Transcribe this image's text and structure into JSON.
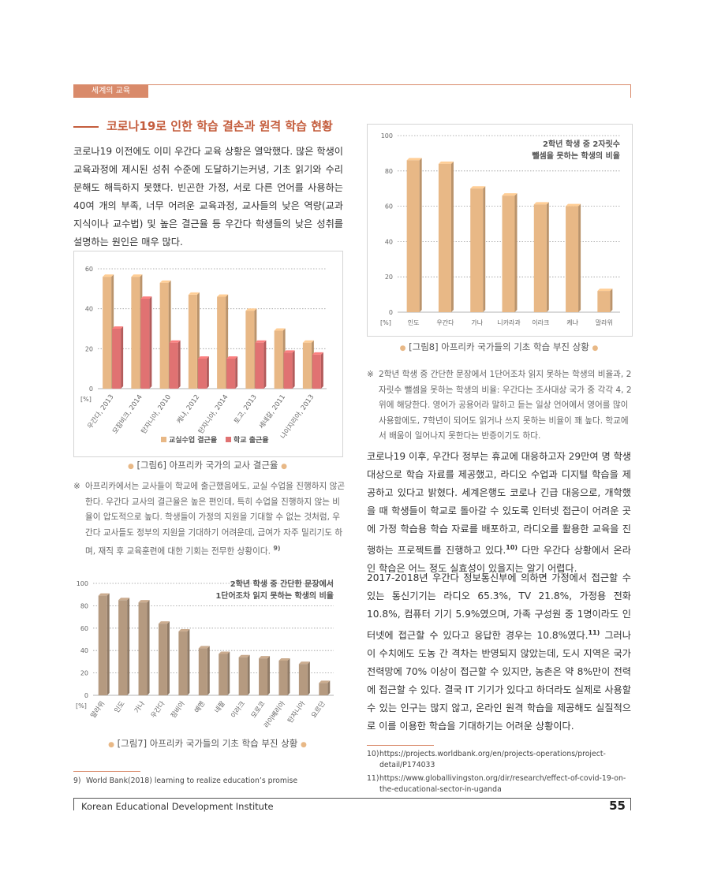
{
  "header": {
    "section_tab": "세계의 교육"
  },
  "section_title": "코로나19로 인한 학습 결손과 원격 학습 현황",
  "intro_paragraph": "코로나19 이전에도 이미 우간다 교육 상황은 열악했다. 많은 학생이 교육과정에 제시된 성취 수준에 도달하기는커녕, 기초 읽기와 수리 문해도 해득하지 못했다. 빈곤한 가정, 서로 다른 언어를 사용하는 40여 개의 부족, 너무 어려운 교육과정, 교사들의 낮은 역량(교과 지식이나 교수법) 및 높은 결근율 등 우간다 학생들의 낮은 성취를 설명하는 원인은 매우 많다.",
  "fig6": {
    "caption": "[그림6] 아프리카 국가의 교사 결근율",
    "note_mark": "※",
    "note_text": "아프리카에서는 교사들이 학교에 출근했음에도, 교실 수업을 진행하지 않곤 한다. 우간다 교사의 결근율은 높은 편인데, 특히 수업을 진행하지 않는 비율이 압도적으로 높다. 학생들이 가정의 지원을 기대할 수 없는 것처럼, 우간다 교사들도 정부의 지원을 기대하기 어려운데, 급여가 자주 밀리기도 하며, 재직 후 교육훈련에 대한 기회는 전무한 상황이다.",
    "note_ref": "9)"
  },
  "fig7": {
    "caption": "[그림7] 아프리카 국가들의 기초 학습 부진 상황"
  },
  "fig8": {
    "caption": "[그림8] 아프리카 국가들의 기초 학습 부진 상황",
    "note_mark": "※",
    "note_text": "2학년 학생 중 간단한 문장에서 1단어조차 읽지 못하는 학생의 비율과, 2자릿수 뺄셈을 못하는 학생의 비율: 우간다는 조사대상 국가 중 각각 4, 2위에 해당한다. 영어가 공용어라 말하고 듣는 일상 언어에서 영어를 많이 사용함에도, 7학년이 되어도 읽거나 쓰지 못하는 비율이 꽤 높다. 학교에서 배움이 일어나지 못한다는 반증이기도 하다."
  },
  "paragraph_covid": {
    "text": "코로나19 이후, 우간다 정부는 휴교에 대응하고자 29만여 명 학생 대상으로 학습 자료를 제공했고, 라디오 수업과 디지털 학습을 제공하고 있다고 밝혔다. 세계은행도 코로나 긴급 대응으로, 개학했을 때 학생들이 학교로 돌아갈 수 있도록 인터넷 접근이 어려운 곳에 가정 학습용 학습 자료를 배포하고, 라디오를 활용한 교육을 진행하는 프로젝트를 진행하고 있다.",
    "ref": "10)",
    "text_after": " 다만 우간다 상황에서 온라인 학습은 어느 정도 실효성이 있을지는 알기 어렵다."
  },
  "paragraph_survey": {
    "text": "2017-2018년 우간다 정보통신부에 의하면 가정에서 접근할 수 있는 통신기기는 라디오 65.3%, TV 21.8%, 가정용 전화 10.8%, 컴퓨터 기기 5.9%였으며, 가족 구성원 중 1명이라도 인터넷에 접근할 수 있다고 응답한 경우는 10.8%였다.",
    "ref": "11)",
    "text_after": " 그러나 이 수치에도 도농 간 격차는 반영되지 않았는데, 도시 지역은 국가 전력망에 70% 이상이 접근할 수 있지만, 농촌은 약 8%만이 전력에 접근할 수 있다. 결국 IT 기기가 있다고 하더라도 실제로 사용할 수 있는 인구는 많지 않고, 온라인 원격 학습을 제공해도 실질적으로 이를 이용한 학습을 기대하기는 어려운 상황이다."
  },
  "footnotes": {
    "fn9_num": "9)",
    "fn9_text": "World Bank(2018) learning to realize education’s promise",
    "fn10_num": "10)",
    "fn10_text": "https://projects.worldbank.org/en/projects-operations/project-detail/P174033",
    "fn11_num": "11)",
    "fn11_text": "https://www.globallivingston.org/dir/research/effect-of-covid-19-on-the-educational-sector-in-uganda"
  },
  "footer": {
    "organization": "Korean Educational Development Institute",
    "page_number": "55"
  },
  "colors": {
    "accent": "#d98a6a",
    "title": "#c45d3d",
    "bar_orange": "#e8b886",
    "bar_red": "#e07272",
    "bar_brown": "#b59a80"
  },
  "chart_data": [
    {
      "type": "bar",
      "id": "fig6",
      "categories": [
        "우간다, 2013",
        "모잠비크, 2014",
        "탄자니아, 2010",
        "케냐, 2012",
        "탄자니아, 2014",
        "토고, 2013",
        "세네갈, 2011",
        "나이지리아, 2013"
      ],
      "series": [
        {
          "name": "교실수업 결근율",
          "values": [
            56,
            56,
            53,
            47,
            46,
            39,
            29,
            23
          ]
        },
        {
          "name": "학교 출근율",
          "values": [
            30,
            45,
            23,
            15,
            15,
            23,
            18,
            17
          ]
        }
      ],
      "yticks": [
        0,
        20,
        40,
        60
      ],
      "ylim": [
        0,
        60
      ],
      "unit_label": "[%]",
      "grid": true,
      "legend_position": "bottom"
    },
    {
      "type": "bar",
      "id": "fig7",
      "title": "2학년 학생 중 간단한 문장에서 1단어조차 읽지 못하는 학생의 비율",
      "title_lines": [
        "2학년 학생 중 간단한 문장에서",
        "1단어조차 읽지 못하는 학생의 비율"
      ],
      "categories": [
        "말라위",
        "인도",
        "가나",
        "우간다",
        "잠비아",
        "예멘",
        "네팔",
        "이라크",
        "모로코",
        "라이베리아",
        "탄자니아",
        "요르단"
      ],
      "values": [
        89,
        85,
        83,
        64,
        57,
        42,
        37,
        34,
        33,
        31,
        28,
        11
      ],
      "yticks": [
        0,
        20,
        40,
        60,
        80,
        100
      ],
      "ylim": [
        0,
        100
      ],
      "unit_label": "[%]",
      "grid": true
    },
    {
      "type": "bar",
      "id": "fig8",
      "title": "2학년 학생 중 2자릿수 뺄셈을 못하는 학생의 비율",
      "title_lines": [
        "2학년 학생 중 2자릿수",
        "뺄셈을 못하는 학생의 비율"
      ],
      "categories": [
        "인도",
        "우간다",
        "가나",
        "니카라과",
        "이라크",
        "케냐",
        "말라위"
      ],
      "values": [
        86,
        84,
        70,
        66,
        61,
        60,
        12
      ],
      "yticks": [
        0,
        20,
        40,
        60,
        80,
        100
      ],
      "ylim": [
        0,
        100
      ],
      "unit_label": "[%]",
      "grid": true
    }
  ]
}
